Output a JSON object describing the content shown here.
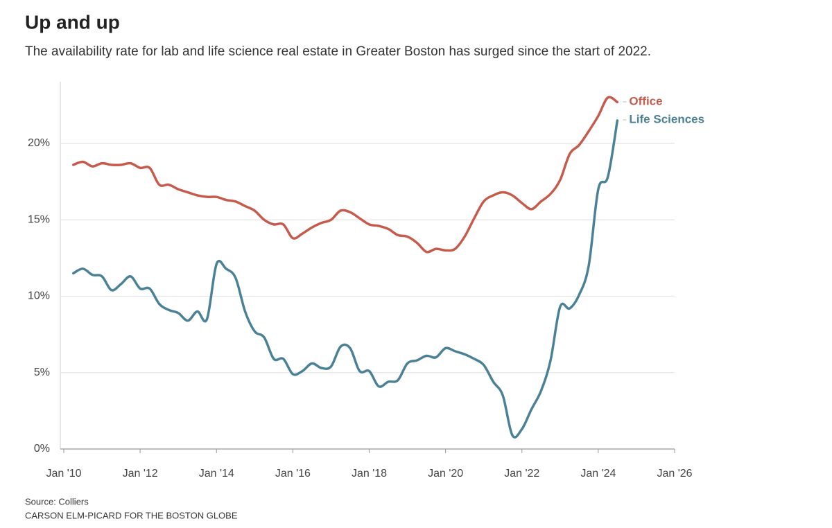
{
  "chart_data": {
    "type": "line",
    "title": "Up and up",
    "subtitle": "The availability rate for lab and life science real estate in Greater Boston has surged since the start of 2022.",
    "source": "Source: Colliers",
    "credit": "CARSON ELM-PICARD FOR THE BOSTON GLOBE",
    "x": [
      2010.25,
      2010.5,
      2010.75,
      2011,
      2011.25,
      2011.5,
      2011.75,
      2012,
      2012.25,
      2012.5,
      2012.75,
      2013,
      2013.25,
      2013.5,
      2013.75,
      2014,
      2014.25,
      2014.5,
      2014.75,
      2015,
      2015.25,
      2015.5,
      2015.75,
      2016,
      2016.25,
      2016.5,
      2016.75,
      2017,
      2017.25,
      2017.5,
      2017.75,
      2018,
      2018.25,
      2018.5,
      2018.75,
      2019,
      2019.25,
      2019.5,
      2019.75,
      2020,
      2020.25,
      2020.5,
      2020.75,
      2021,
      2021.25,
      2021.5,
      2021.75,
      2022,
      2022.25,
      2022.5,
      2022.75,
      2023,
      2023.25,
      2023.5,
      2023.75,
      2024,
      2024.25,
      2024.5
    ],
    "series": [
      {
        "name": "Office",
        "color": "#c65a4b",
        "values": [
          18.6,
          18.8,
          18.5,
          18.7,
          18.6,
          18.6,
          18.7,
          18.4,
          18.4,
          17.3,
          17.3,
          17.0,
          16.8,
          16.6,
          16.5,
          16.5,
          16.3,
          16.2,
          15.9,
          15.6,
          15.0,
          14.7,
          14.7,
          13.8,
          14.1,
          14.5,
          14.8,
          15.0,
          15.6,
          15.5,
          15.1,
          14.7,
          14.6,
          14.4,
          14.0,
          13.9,
          13.5,
          12.9,
          13.1,
          13.0,
          13.1,
          13.9,
          15.1,
          16.2,
          16.6,
          16.8,
          16.6,
          16.1,
          15.7,
          16.2,
          16.7,
          17.6,
          19.3,
          19.9,
          20.8,
          21.8,
          23.0,
          22.7
        ]
      },
      {
        "name": "Life Sciences",
        "color": "#4b8197",
        "values": [
          11.5,
          11.8,
          11.4,
          11.3,
          10.4,
          10.8,
          11.3,
          10.5,
          10.5,
          9.5,
          9.1,
          8.9,
          8.4,
          9.0,
          8.5,
          12.1,
          11.8,
          11.2,
          9.0,
          7.7,
          7.3,
          5.9,
          5.9,
          4.9,
          5.1,
          5.6,
          5.3,
          5.4,
          6.7,
          6.6,
          5.1,
          5.1,
          4.1,
          4.4,
          4.5,
          5.6,
          5.8,
          6.1,
          6.0,
          6.6,
          6.4,
          6.2,
          5.9,
          5.5,
          4.4,
          3.5,
          0.9,
          1.3,
          2.6,
          3.8,
          5.8,
          9.3,
          9.2,
          10.1,
          12.0,
          17.0,
          17.8,
          21.5
        ]
      }
    ],
    "xlim": [
      2010,
      2026
    ],
    "xticks": [
      {
        "value": 2010,
        "label": "Jan '10"
      },
      {
        "value": 2012,
        "label": "Jan '12"
      },
      {
        "value": 2014,
        "label": "Jan '14"
      },
      {
        "value": 2016,
        "label": "Jan '16"
      },
      {
        "value": 2018,
        "label": "Jan '18"
      },
      {
        "value": 2020,
        "label": "Jan '20"
      },
      {
        "value": 2022,
        "label": "Jan '22"
      },
      {
        "value": 2024,
        "label": "Jan '24"
      },
      {
        "value": 2026,
        "label": "Jan '26"
      }
    ],
    "ylim": [
      0,
      24.2
    ],
    "yticks": [
      {
        "value": 0,
        "label": "0%"
      },
      {
        "value": 5,
        "label": "5%"
      },
      {
        "value": 10,
        "label": "10%"
      },
      {
        "value": 15,
        "label": "15%"
      },
      {
        "value": 20,
        "label": "20%"
      }
    ],
    "grid": true
  }
}
